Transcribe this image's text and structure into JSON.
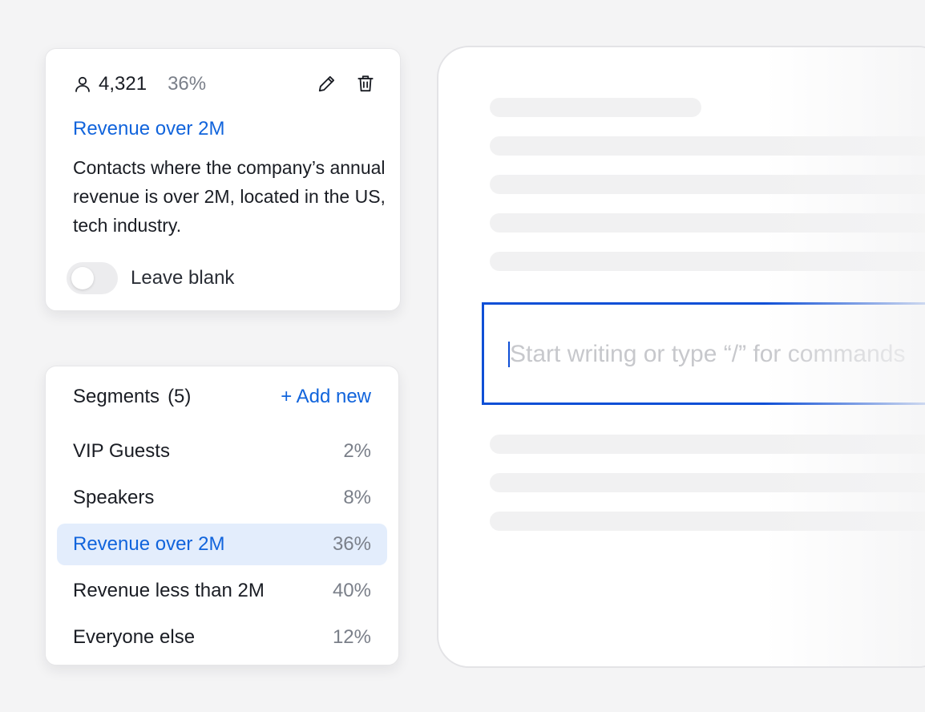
{
  "segment_card": {
    "contact_count": "4,321",
    "percent": "36%",
    "title": "Revenue over 2M",
    "description": "Contacts where the company’s annual revenue is over 2M, located in the US, tech industry.",
    "toggle_label": "Leave blank",
    "toggle_on": false,
    "icons": {
      "count": "user-icon",
      "edit": "pencil-icon",
      "delete": "trash-icon"
    }
  },
  "segments": {
    "heading": "Segments",
    "count": "(5)",
    "add_label": "+ Add new",
    "items": [
      {
        "name": "VIP Guests",
        "percent": "2%",
        "selected": false
      },
      {
        "name": "Speakers",
        "percent": "8%",
        "selected": false
      },
      {
        "name": "Revenue over 2M",
        "percent": "36%",
        "selected": true
      },
      {
        "name": "Revenue less than 2M",
        "percent": "40%",
        "selected": false
      },
      {
        "name": "Everyone else",
        "percent": "12%",
        "selected": false
      }
    ]
  },
  "editor": {
    "placeholder": "Start writing or type “/” for commands",
    "value": ""
  },
  "colors": {
    "accent": "#1164dc",
    "focus_border": "#0f4fd6",
    "selected_bg": "#e3edfc",
    "muted_text": "#7a7f89"
  }
}
